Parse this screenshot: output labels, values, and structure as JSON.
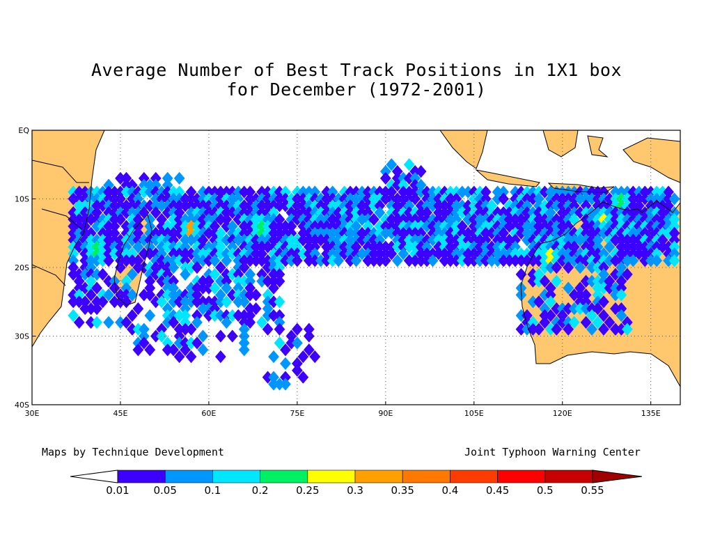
{
  "title_line1": "Average Number of Best Track Positions in 1X1 box",
  "title_line2": "for December (1972-2001)",
  "credit_left": "Maps by Technique Development",
  "credit_right": "Joint Typhoon Warning Center",
  "map": {
    "lon_range": [
      30,
      140
    ],
    "lat_range": [
      -40,
      0
    ],
    "lon_ticks": [
      {
        "value": 30,
        "label": "30E"
      },
      {
        "value": 45,
        "label": "45E"
      },
      {
        "value": 60,
        "label": "60E"
      },
      {
        "value": 75,
        "label": "75E"
      },
      {
        "value": 90,
        "label": "90E"
      },
      {
        "value": 105,
        "label": "105E"
      },
      {
        "value": 120,
        "label": "120E"
      },
      {
        "value": 135,
        "label": "135E"
      }
    ],
    "lat_ticks": [
      {
        "value": 0,
        "label": "EQ"
      },
      {
        "value": -10,
        "label": "10S"
      },
      {
        "value": -20,
        "label": "20S"
      },
      {
        "value": -30,
        "label": "30S"
      },
      {
        "value": -40,
        "label": "40S"
      }
    ],
    "grid": "dotted",
    "land_color": "#FFC86E",
    "ocean_color": "#FFFFFF"
  },
  "colorbar": {
    "labels": [
      "0.01",
      "0.05",
      "0.1",
      "0.2",
      "0.25",
      "0.3",
      "0.35",
      "0.4",
      "0.45",
      "0.5",
      "0.55"
    ],
    "colors": [
      "#FFFFFF",
      "#3C00FF",
      "#0096FF",
      "#00E6FF",
      "#00F064",
      "#FFFF00",
      "#FFA000",
      "#FF7800",
      "#FF3C00",
      "#FF0000",
      "#C80000",
      "#A00000"
    ]
  },
  "chart_data": {
    "type": "heatmap",
    "title": "Average Number of Best Track Positions in 1X1 box for December (1972-2001)",
    "xlabel": "",
    "ylabel": "",
    "x_range": [
      30,
      140
    ],
    "y_range": [
      -40,
      0
    ],
    "levels": [
      0.01,
      0.05,
      0.1,
      0.2,
      0.25,
      0.3,
      0.35,
      0.4,
      0.45,
      0.5,
      0.55
    ],
    "hotspots": [
      {
        "lon": 57,
        "lat": -14.5,
        "value": 0.4
      },
      {
        "lon": 118,
        "lat": -18.5,
        "value": 0.3
      },
      {
        "lon": 130,
        "lat": -10.5,
        "value": 0.25
      },
      {
        "lon": 41,
        "lat": -17.5,
        "value": 0.25
      },
      {
        "lon": 69,
        "lat": -14.5,
        "value": 0.25
      },
      {
        "lon": 127,
        "lat": -13,
        "value": 0.25
      },
      {
        "lon": 139,
        "lat": -13.5,
        "value": 0.2
      }
    ]
  }
}
